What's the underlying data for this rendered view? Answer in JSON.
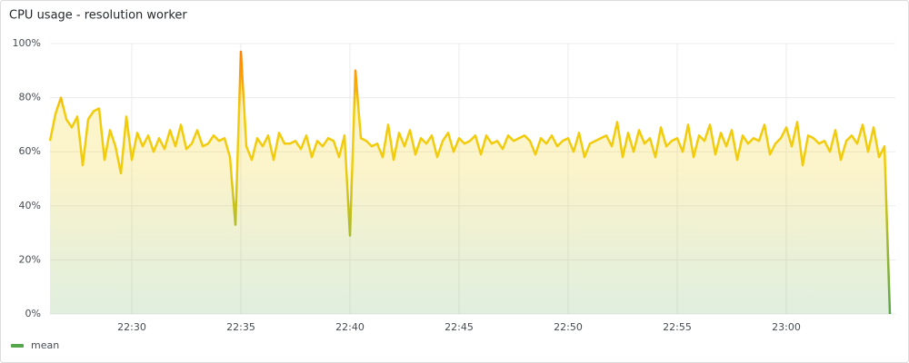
{
  "chart_data": {
    "type": "line",
    "title": "CPU usage - resolution worker",
    "x": [
      1346.25,
      1346.5,
      1346.75,
      1347,
      1347.25,
      1347.5,
      1347.75,
      1348,
      1348.25,
      1348.5,
      1348.75,
      1349,
      1349.25,
      1349.5,
      1349.75,
      1350,
      1350.25,
      1350.5,
      1350.75,
      1351,
      1351.25,
      1351.5,
      1351.75,
      1352,
      1352.25,
      1352.5,
      1352.75,
      1353,
      1353.25,
      1353.5,
      1353.75,
      1354,
      1354.25,
      1354.5,
      1354.75,
      1355,
      1355.25,
      1355.5,
      1355.75,
      1356,
      1356.25,
      1356.5,
      1356.75,
      1357,
      1357.25,
      1357.5,
      1357.75,
      1358,
      1358.25,
      1358.5,
      1358.75,
      1359,
      1359.25,
      1359.5,
      1359.75,
      1360,
      1360.25,
      1360.5,
      1360.75,
      1361,
      1361.25,
      1361.5,
      1361.75,
      1362,
      1362.25,
      1362.5,
      1362.75,
      1363,
      1363.25,
      1363.5,
      1363.75,
      1364,
      1364.25,
      1364.5,
      1364.75,
      1365,
      1365.25,
      1365.5,
      1365.75,
      1366,
      1366.25,
      1366.5,
      1366.75,
      1367,
      1367.25,
      1367.5,
      1367.75,
      1368,
      1368.25,
      1368.5,
      1368.75,
      1369,
      1369.25,
      1369.5,
      1369.75,
      1370,
      1370.25,
      1370.5,
      1370.75,
      1371,
      1371.25,
      1371.5,
      1371.75,
      1372,
      1372.25,
      1372.5,
      1372.75,
      1373,
      1373.25,
      1373.5,
      1373.75,
      1374,
      1374.25,
      1374.5,
      1374.75,
      1375,
      1375.25,
      1375.5,
      1375.75,
      1376,
      1376.25,
      1376.5,
      1376.75,
      1377,
      1377.25,
      1377.5,
      1377.75,
      1378,
      1378.25,
      1378.5,
      1378.75,
      1379,
      1379.25,
      1379.5,
      1379.75,
      1380,
      1380.25,
      1380.5,
      1380.75,
      1381,
      1381.25,
      1381.5,
      1381.75,
      1382,
      1382.25,
      1382.5,
      1382.75,
      1383,
      1383.25,
      1383.5,
      1383.75,
      1384,
      1384.25,
      1384.5,
      1384.75
    ],
    "series": [
      {
        "name": "mean",
        "color": "#56a64b",
        "gradient_colors": [
          "#56a64b",
          "#f2cc0c",
          "#f2cc0c",
          "#ff780a"
        ],
        "values": [
          64,
          74,
          80,
          72,
          69,
          73,
          55,
          72,
          75,
          76,
          57,
          68,
          62,
          52,
          73,
          57,
          67,
          62,
          66,
          60,
          65,
          61,
          68,
          62,
          70,
          61,
          63,
          68,
          62,
          63,
          66,
          64,
          65,
          58,
          33,
          97,
          62,
          57,
          65,
          62,
          66,
          57,
          67,
          63,
          63,
          64,
          61,
          66,
          58,
          64,
          62,
          65,
          64,
          58,
          66,
          29,
          90,
          65,
          64,
          62,
          63,
          58,
          70,
          57,
          67,
          62,
          68,
          59,
          65,
          63,
          66,
          58,
          64,
          67,
          60,
          65,
          63,
          64,
          66,
          59,
          66,
          63,
          64,
          61,
          66,
          64,
          65,
          66,
          64,
          59,
          65,
          63,
          66,
          62,
          64,
          65,
          60,
          67,
          58,
          63,
          64,
          65,
          66,
          62,
          71,
          58,
          67,
          60,
          68,
          63,
          65,
          58,
          69,
          62,
          64,
          65,
          60,
          70,
          58,
          66,
          64,
          70,
          59,
          67,
          62,
          68,
          57,
          66,
          63,
          65,
          64,
          70,
          59,
          63,
          65,
          69,
          62,
          71,
          55,
          66,
          65,
          63,
          64,
          60,
          68,
          57,
          64,
          66,
          63,
          70,
          60,
          69,
          58,
          62,
          0
        ]
      }
    ],
    "xlim": [
      1346.25,
      1385
    ],
    "xticks": [
      {
        "value": 1350,
        "label": "22:30"
      },
      {
        "value": 1355,
        "label": "22:35"
      },
      {
        "value": 1360,
        "label": "22:40"
      },
      {
        "value": 1365,
        "label": "22:45"
      },
      {
        "value": 1370,
        "label": "22:50"
      },
      {
        "value": 1375,
        "label": "22:55"
      },
      {
        "value": 1380,
        "label": "23:00"
      }
    ],
    "ylim": [
      0,
      100
    ],
    "yticks": [
      {
        "value": 0,
        "label": "0%"
      },
      {
        "value": 20,
        "label": "20%"
      },
      {
        "value": 40,
        "label": "40%"
      },
      {
        "value": 60,
        "label": "60%"
      },
      {
        "value": 80,
        "label": "80%"
      },
      {
        "value": 100,
        "label": "100%"
      }
    ],
    "grid": true
  }
}
